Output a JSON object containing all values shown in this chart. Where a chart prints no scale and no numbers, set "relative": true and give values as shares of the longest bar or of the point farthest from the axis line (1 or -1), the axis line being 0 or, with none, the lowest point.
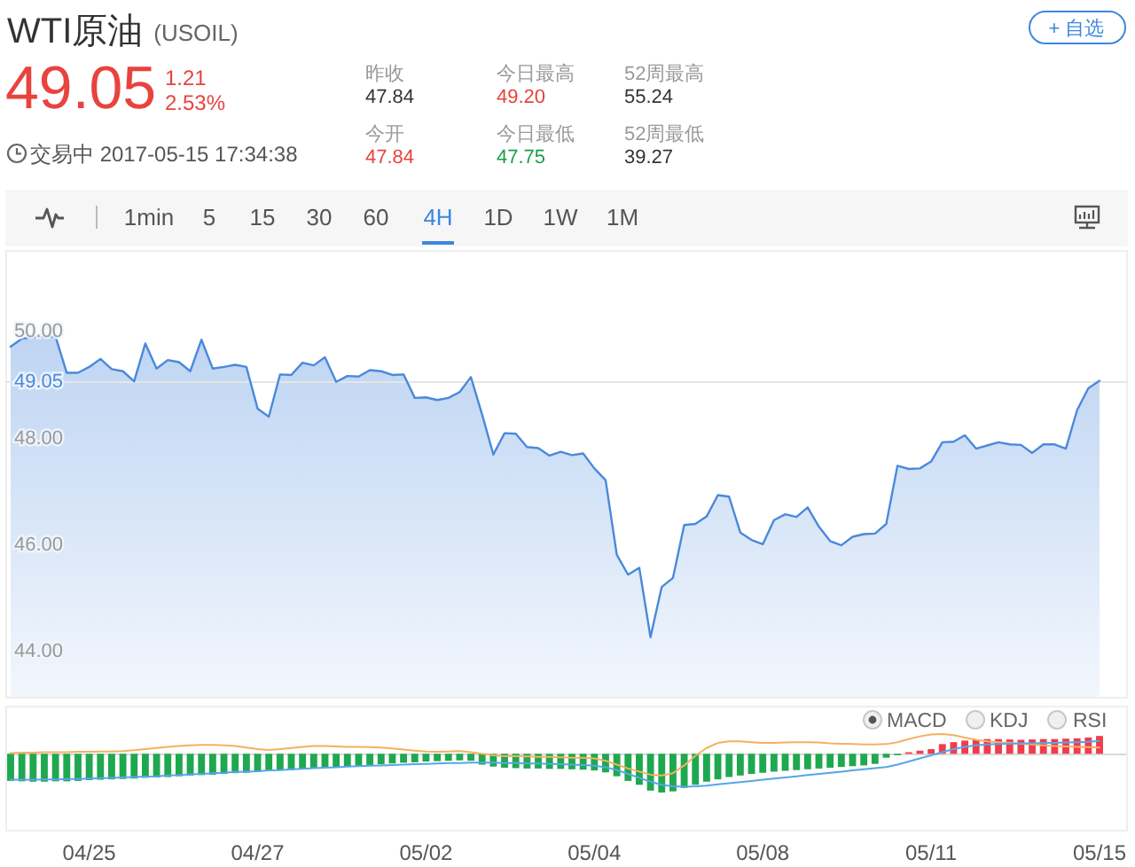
{
  "chart_data": [
    {
      "type": "other",
      "title": "WTI原油",
      "subtitle": "(USOIL)",
      "annotations": [
        "49.05",
        "1.21",
        "2.53%",
        "昨收",
        "47.84",
        "今日最高",
        "49.20",
        "52周最高",
        "55.24",
        "今开",
        "47.84",
        "今日最低",
        "47.75",
        "52周最低",
        "39.27",
        "交易中 2017-05-15 17:34:38",
        "+ 自选",
        "1min",
        "5",
        "15",
        "30",
        "60",
        "4H",
        "1D",
        "1W",
        "1M"
      ]
    },
    {
      "type": "area",
      "color": "#4a89dc",
      "ylim": [
        43.1,
        51.5
      ],
      "yticks": [
        {
          "value": 44,
          "label": "44.00"
        },
        {
          "value": 46,
          "label": "46.00"
        },
        {
          "value": 48,
          "label": "48.00"
        },
        {
          "value": 50,
          "label": "50.00"
        }
      ],
      "ref_lines": [
        {
          "axis": "y",
          "value": 49.05,
          "label": "49.05",
          "color": "#e6e6e6"
        }
      ],
      "categories": [
        null,
        null,
        null,
        null,
        null,
        null,
        null,
        null,
        null,
        null,
        null,
        null,
        null,
        null,
        null,
        null,
        null,
        null,
        null,
        null,
        null,
        null,
        null,
        null,
        null,
        null,
        null,
        null,
        null,
        null,
        null,
        null,
        null,
        null,
        null,
        null,
        null,
        null,
        null,
        null,
        null,
        null,
        null,
        null,
        null,
        null,
        null,
        null,
        null,
        null,
        null,
        null,
        null,
        null,
        null,
        null,
        null,
        null,
        null,
        null,
        null,
        null,
        null,
        null,
        null,
        null,
        null,
        null,
        null,
        null,
        null,
        null,
        null,
        null,
        null,
        null,
        null,
        null,
        null,
        null,
        null,
        null,
        null,
        null,
        null,
        null,
        null,
        null,
        null,
        null,
        null,
        null,
        null,
        null,
        null,
        null,
        null,
        null
      ],
      "values": [
        49.69,
        49.84,
        49.87,
        49.88,
        49.88,
        49.2,
        49.2,
        49.31,
        49.46,
        49.27,
        49.23,
        49.04,
        49.75,
        49.28,
        49.44,
        49.4,
        49.23,
        49.82,
        49.28,
        49.31,
        49.35,
        49.31,
        48.53,
        48.38,
        49.17,
        49.16,
        49.39,
        49.34,
        49.49,
        49.03,
        49.14,
        49.13,
        49.25,
        49.23,
        49.16,
        49.17,
        48.73,
        48.74,
        48.69,
        48.73,
        48.84,
        49.12,
        48.42,
        47.67,
        48.07,
        48.06,
        47.81,
        47.79,
        47.65,
        47.72,
        47.66,
        47.69,
        47.41,
        47.19,
        45.79,
        45.42,
        45.55,
        44.25,
        45.19,
        45.36,
        46.35,
        46.37,
        46.51,
        46.91,
        46.88,
        46.21,
        46.07,
        45.99,
        46.44,
        46.55,
        46.5,
        46.68,
        46.32,
        46.05,
        45.97,
        46.13,
        46.18,
        46.19,
        46.37,
        47.46,
        47.4,
        47.41,
        47.54,
        47.9,
        47.91,
        48.03,
        47.78,
        47.84,
        47.9,
        47.86,
        47.85,
        47.7,
        47.86,
        47.86,
        47.78,
        48.5,
        48.91,
        49.05
      ]
    },
    {
      "type": "bar",
      "relative": true,
      "annotations": [
        "MACD",
        "KDJ",
        "RSI"
      ],
      "categories": [
        null,
        null,
        null,
        null,
        null,
        null,
        null,
        "04/25",
        null,
        null,
        null,
        null,
        null,
        null,
        null,
        null,
        null,
        null,
        null,
        null,
        null,
        null,
        "04/27",
        null,
        null,
        null,
        null,
        null,
        null,
        null,
        null,
        null,
        null,
        null,
        null,
        null,
        null,
        "05/02",
        null,
        null,
        null,
        null,
        null,
        null,
        null,
        null,
        null,
        null,
        null,
        null,
        null,
        null,
        "05/04",
        null,
        null,
        null,
        null,
        null,
        null,
        null,
        null,
        null,
        null,
        null,
        null,
        null,
        null,
        "05/08",
        null,
        null,
        null,
        null,
        null,
        null,
        null,
        null,
        null,
        null,
        null,
        null,
        null,
        null,
        "05/11",
        null,
        null,
        null,
        null,
        null,
        null,
        null,
        null,
        null,
        null,
        null,
        null,
        null,
        null,
        "05/15"
      ],
      "series": [
        {
          "type": "bar",
          "values": [
            -0.7,
            -0.71,
            -0.72,
            -0.72,
            -0.71,
            -0.71,
            -0.7,
            -0.68,
            -0.67,
            -0.66,
            -0.65,
            -0.64,
            -0.62,
            -0.61,
            -0.6,
            -0.58,
            -0.56,
            -0.55,
            -0.54,
            -0.52,
            -0.5,
            -0.49,
            -0.47,
            -0.45,
            -0.43,
            -0.42,
            -0.4,
            -0.38,
            -0.36,
            -0.35,
            -0.33,
            -0.31,
            -0.29,
            -0.27,
            -0.25,
            -0.23,
            -0.22,
            -0.2,
            -0.19,
            -0.18,
            -0.17,
            -0.18,
            -0.28,
            -0.33,
            -0.36,
            -0.37,
            -0.38,
            -0.38,
            -0.39,
            -0.39,
            -0.4,
            -0.41,
            -0.43,
            -0.48,
            -0.58,
            -0.7,
            -0.8,
            -0.95,
            -1.0,
            -0.97,
            -0.88,
            -0.8,
            -0.72,
            -0.66,
            -0.6,
            -0.56,
            -0.52,
            -0.49,
            -0.46,
            -0.44,
            -0.42,
            -0.4,
            -0.38,
            -0.36,
            -0.34,
            -0.32,
            -0.3,
            -0.26,
            -0.1,
            -0.03,
            0.04,
            0.08,
            0.12,
            0.25,
            0.3,
            0.34,
            0.37,
            0.38,
            0.38,
            0.37,
            0.36,
            0.37,
            0.38,
            0.38,
            0.39,
            0.4,
            0.42,
            0.46
          ],
          "colors": [
            "#1fa84f",
            "#1fa84f",
            "#1fa84f",
            "#1fa84f",
            "#1fa84f",
            "#1fa84f",
            "#1fa84f",
            "#1fa84f",
            "#1fa84f",
            "#1fa84f",
            "#1fa84f",
            "#1fa84f",
            "#1fa84f",
            "#1fa84f",
            "#1fa84f",
            "#1fa84f",
            "#1fa84f",
            "#1fa84f",
            "#1fa84f",
            "#1fa84f",
            "#1fa84f",
            "#1fa84f",
            "#1fa84f",
            "#1fa84f",
            "#1fa84f",
            "#1fa84f",
            "#1fa84f",
            "#1fa84f",
            "#1fa84f",
            "#1fa84f",
            "#1fa84f",
            "#1fa84f",
            "#1fa84f",
            "#1fa84f",
            "#1fa84f",
            "#1fa84f",
            "#1fa84f",
            "#1fa84f",
            "#1fa84f",
            "#1fa84f",
            "#1fa84f",
            "#1fa84f",
            "#1fa84f",
            "#1fa84f",
            "#1fa84f",
            "#1fa84f",
            "#1fa84f",
            "#1fa84f",
            "#1fa84f",
            "#1fa84f",
            "#1fa84f",
            "#1fa84f",
            "#1fa84f",
            "#1fa84f",
            "#1fa84f",
            "#1fa84f",
            "#1fa84f",
            "#1fa84f",
            "#1fa84f",
            "#1fa84f",
            "#1fa84f",
            "#1fa84f",
            "#1fa84f",
            "#1fa84f",
            "#1fa84f",
            "#1fa84f",
            "#1fa84f",
            "#1fa84f",
            "#1fa84f",
            "#1fa84f",
            "#1fa84f",
            "#1fa84f",
            "#1fa84f",
            "#1fa84f",
            "#1fa84f",
            "#1fa84f",
            "#1fa84f",
            "#1fa84f",
            "#1fa84f",
            "#1fa84f",
            "#f03c4b",
            "#f03c4b",
            "#f03c4b",
            "#f03c4b",
            "#f03c4b",
            "#f03c4b",
            "#f03c4b",
            "#f03c4b",
            "#f03c4b",
            "#f03c4b",
            "#f03c4b",
            "#f03c4b",
            "#f03c4b",
            "#f03c4b",
            "#f03c4b",
            "#f03c4b",
            "#f03c4b",
            "#f03c4b"
          ]
        },
        {
          "type": "line",
          "color": "#f5b061",
          "values": [
            0.02,
            0.03,
            0.03,
            0.04,
            0.04,
            0.04,
            0.05,
            0.05,
            0.06,
            0.06,
            0.07,
            0.09,
            0.12,
            0.15,
            0.18,
            0.2,
            0.22,
            0.23,
            0.23,
            0.22,
            0.2,
            0.16,
            0.12,
            0.1,
            0.12,
            0.15,
            0.18,
            0.2,
            0.2,
            0.19,
            0.18,
            0.18,
            0.17,
            0.16,
            0.14,
            0.11,
            0.08,
            0.06,
            0.05,
            0.06,
            0.07,
            0.04,
            0.0,
            -0.04,
            -0.06,
            -0.06,
            -0.07,
            -0.08,
            -0.08,
            -0.09,
            -0.1,
            -0.1,
            -0.12,
            -0.18,
            -0.28,
            -0.38,
            -0.46,
            -0.54,
            -0.56,
            -0.5,
            -0.3,
            -0.05,
            0.15,
            0.28,
            0.32,
            0.32,
            0.3,
            0.28,
            0.28,
            0.29,
            0.3,
            0.3,
            0.29,
            0.27,
            0.26,
            0.25,
            0.24,
            0.24,
            0.25,
            0.3,
            0.38,
            0.45,
            0.5,
            0.51,
            0.48,
            0.42,
            0.36,
            0.32,
            0.3,
            0.28,
            0.26,
            0.24,
            0.22,
            0.2,
            0.19,
            0.18,
            0.17,
            0.16
          ]
        },
        {
          "type": "line",
          "color": "#55a6e8",
          "values": [
            -0.67,
            -0.67,
            -0.67,
            -0.66,
            -0.66,
            -0.65,
            -0.65,
            -0.64,
            -0.63,
            -0.62,
            -0.61,
            -0.6,
            -0.59,
            -0.58,
            -0.56,
            -0.55,
            -0.53,
            -0.52,
            -0.5,
            -0.49,
            -0.47,
            -0.46,
            -0.45,
            -0.43,
            -0.42,
            -0.4,
            -0.39,
            -0.37,
            -0.36,
            -0.35,
            -0.33,
            -0.32,
            -0.31,
            -0.3,
            -0.29,
            -0.28,
            -0.27,
            -0.26,
            -0.25,
            -0.24,
            -0.24,
            -0.23,
            -0.23,
            -0.23,
            -0.24,
            -0.24,
            -0.25,
            -0.25,
            -0.26,
            -0.27,
            -0.28,
            -0.29,
            -0.31,
            -0.35,
            -0.42,
            -0.52,
            -0.62,
            -0.72,
            -0.8,
            -0.84,
            -0.85,
            -0.84,
            -0.82,
            -0.79,
            -0.76,
            -0.73,
            -0.7,
            -0.67,
            -0.64,
            -0.61,
            -0.58,
            -0.55,
            -0.52,
            -0.49,
            -0.46,
            -0.43,
            -0.4,
            -0.37,
            -0.34,
            -0.28,
            -0.2,
            -0.12,
            -0.04,
            0.04,
            0.12,
            0.18,
            0.22,
            0.24,
            0.25,
            0.26,
            0.27,
            0.27,
            0.28,
            0.28,
            0.29,
            0.3,
            0.31,
            0.33
          ]
        }
      ]
    }
  ]
}
